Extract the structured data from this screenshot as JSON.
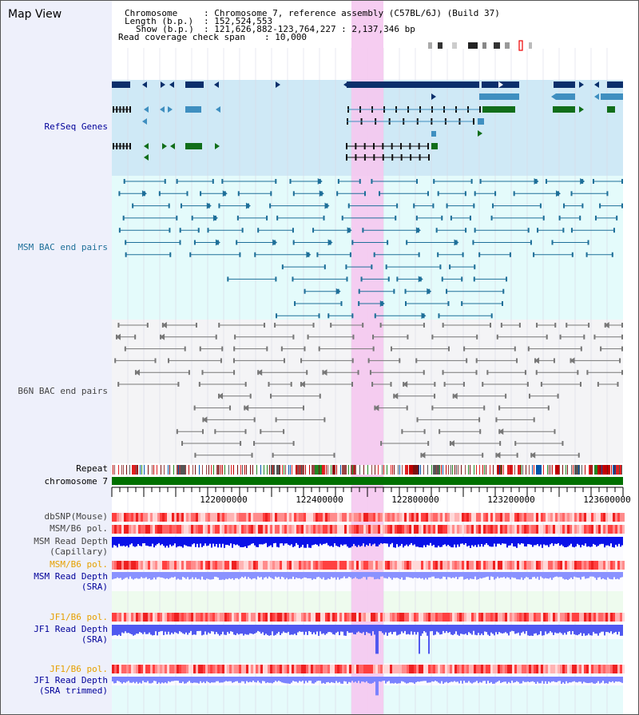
{
  "title": "Map View",
  "info": {
    "chromosome_label": "Chromosome",
    "chromosome_value": ": Chromosome 7, reference assembly (C57BL/6J) (Build 37)",
    "length_label": "Length (b.p.)",
    "length_value": ": 152,524,553",
    "show_label": "Show (b.p.)",
    "show_value": ": 121,626,882-123,764,227 : 2,137,346 bp",
    "read_cov_label": "Read coverage check span",
    "read_cov_value": ": 10,000"
  },
  "tracks": {
    "refseq": "RefSeq Genes",
    "msm_bac": "MSM BAC end pairs",
    "b6n_bac": "B6N BAC end pairs",
    "repeat": "Repeat",
    "chromosome": "chromosome 7",
    "dbsnp": "dbSNP(Mouse)",
    "msm_b6_pol_1": "MSM/B6 pol.",
    "msm_depth_cap_1": "MSM Read Depth",
    "msm_depth_cap_2": "(Capillary)",
    "msm_b6_pol_2": "MSM/B6 pol.",
    "msm_depth_sra_1": "MSM Read Depth",
    "msm_depth_sra_2": "(SRA)",
    "jf1_pol_1": "JF1/B6 pol.",
    "jf1_depth_1": "JF1 Read Depth",
    "jf1_depth_2": "(SRA)",
    "jf1_pol_2": "JF1/B6 pol.",
    "jf1_depth_trim_1": "JF1 Read Depth",
    "jf1_depth_trim_2": "(SRA trimmed)"
  },
  "axis": {
    "ticks": [
      "122000000",
      "122400000",
      "122800000",
      "123200000",
      "123600000"
    ]
  },
  "colors": {
    "refseq_bg": "#cfe9f6",
    "msm_bac_bg": "#e4fbfb",
    "b6n_bg": "#f4f4f6",
    "highlight": "#f5c8ef",
    "gene_dark": "#0b2f6b",
    "gene_mid": "#3f8fc0",
    "gene_green": "#116e1a",
    "bac_msm": "#1e6f99",
    "bac_b6n": "#777777",
    "chrom_green": "#007000",
    "depth_blue": "#0a12e8",
    "depth_light": "#8a92ff",
    "label_navy": "#000099",
    "label_orange": "#e6a000"
  }
}
